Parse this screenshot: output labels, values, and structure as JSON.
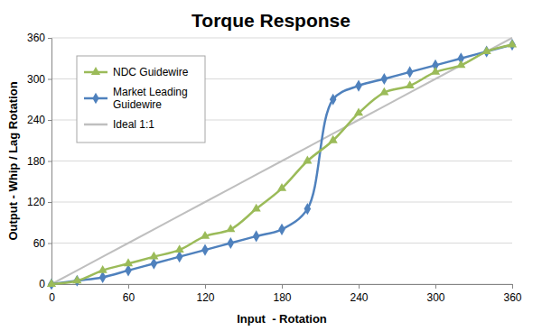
{
  "chart_data": {
    "type": "line",
    "title": "Torque Response",
    "x_label": "Input  - Rotation",
    "y_label": "Output - Whip / Lag Rotation",
    "x": [
      0,
      20,
      40,
      60,
      80,
      100,
      120,
      140,
      160,
      180,
      200,
      220,
      240,
      260,
      280,
      300,
      320,
      340,
      360
    ],
    "series": [
      {
        "name": "NDC Guidewire",
        "color": "#9bbb59",
        "marker": "triangle",
        "line_style": "smooth",
        "values": [
          0,
          5,
          20,
          30,
          40,
          50,
          70,
          80,
          110,
          140,
          180,
          210,
          250,
          280,
          290,
          310,
          320,
          340,
          350
        ]
      },
      {
        "name": "Market Leading Guidewire",
        "color": "#4f81bd",
        "marker": "diamond",
        "line_style": "smooth",
        "values": [
          0,
          5,
          10,
          20,
          30,
          40,
          50,
          60,
          70,
          80,
          110,
          270,
          290,
          300,
          310,
          320,
          330,
          340,
          350
        ]
      },
      {
        "name": "Ideal 1:1",
        "color": "#bfbfbf",
        "marker": "none",
        "line_style": "solid",
        "values": [
          0,
          20,
          40,
          60,
          80,
          100,
          120,
          140,
          160,
          180,
          200,
          220,
          240,
          260,
          280,
          300,
          320,
          340,
          360
        ]
      }
    ],
    "xlim": [
      0,
      360
    ],
    "ylim": [
      0,
      360
    ],
    "xticks": [
      0,
      60,
      120,
      180,
      240,
      300,
      360
    ],
    "yticks": [
      0,
      60,
      120,
      180,
      240,
      300,
      360
    ],
    "grid": true,
    "legend": "top-left"
  }
}
